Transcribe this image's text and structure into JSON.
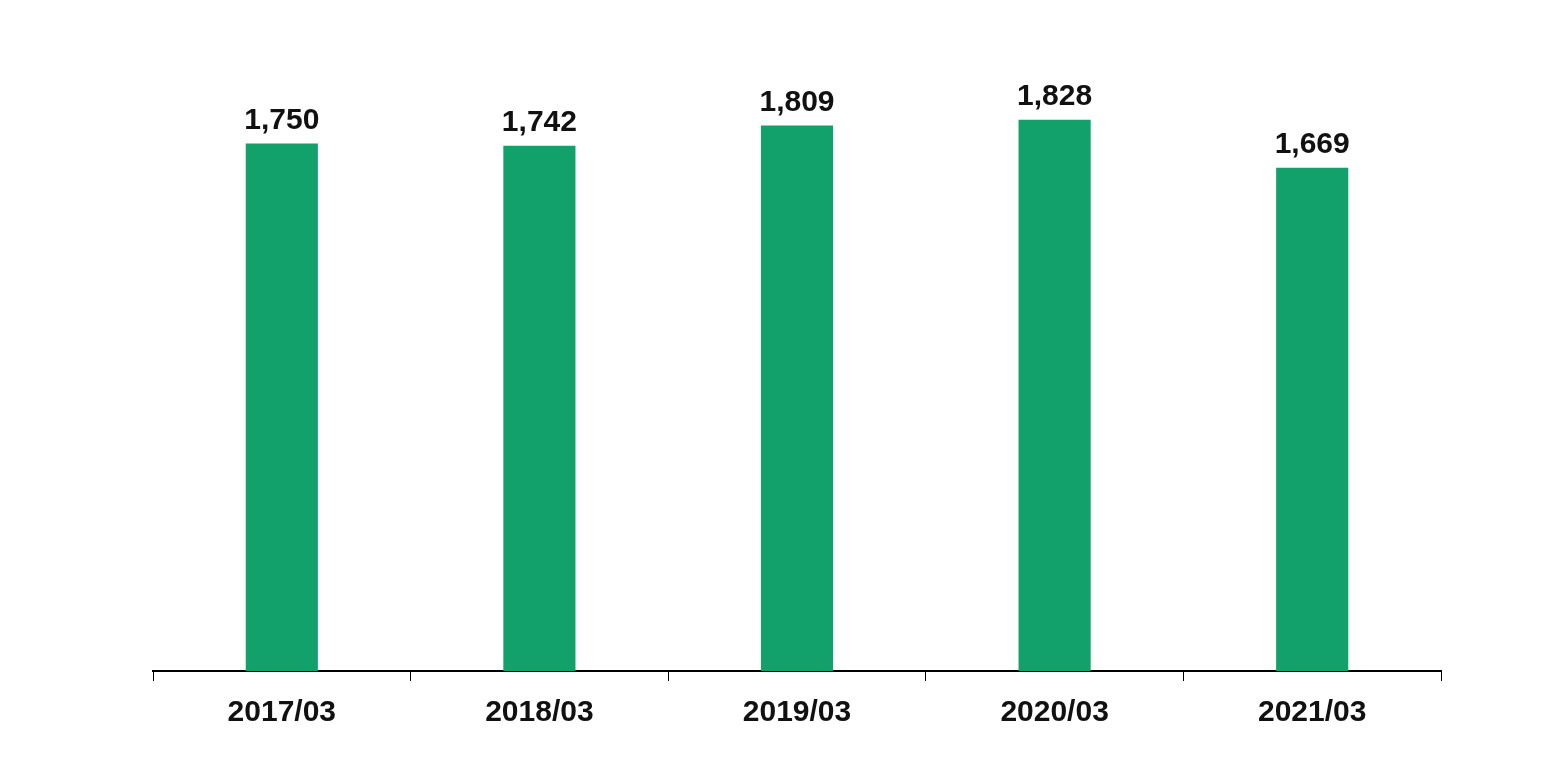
{
  "chart_data": {
    "type": "bar",
    "categories": [
      "2017/03",
      "2018/03",
      "2019/03",
      "2020/03",
      "2021/03"
    ],
    "values": [
      1750,
      1742,
      1809,
      1828,
      1669
    ],
    "value_labels": [
      "1,750",
      "1,742",
      "1,809",
      "1,828",
      "1,669"
    ],
    "color": "#12a06b",
    "grid": false,
    "legend": false
  }
}
